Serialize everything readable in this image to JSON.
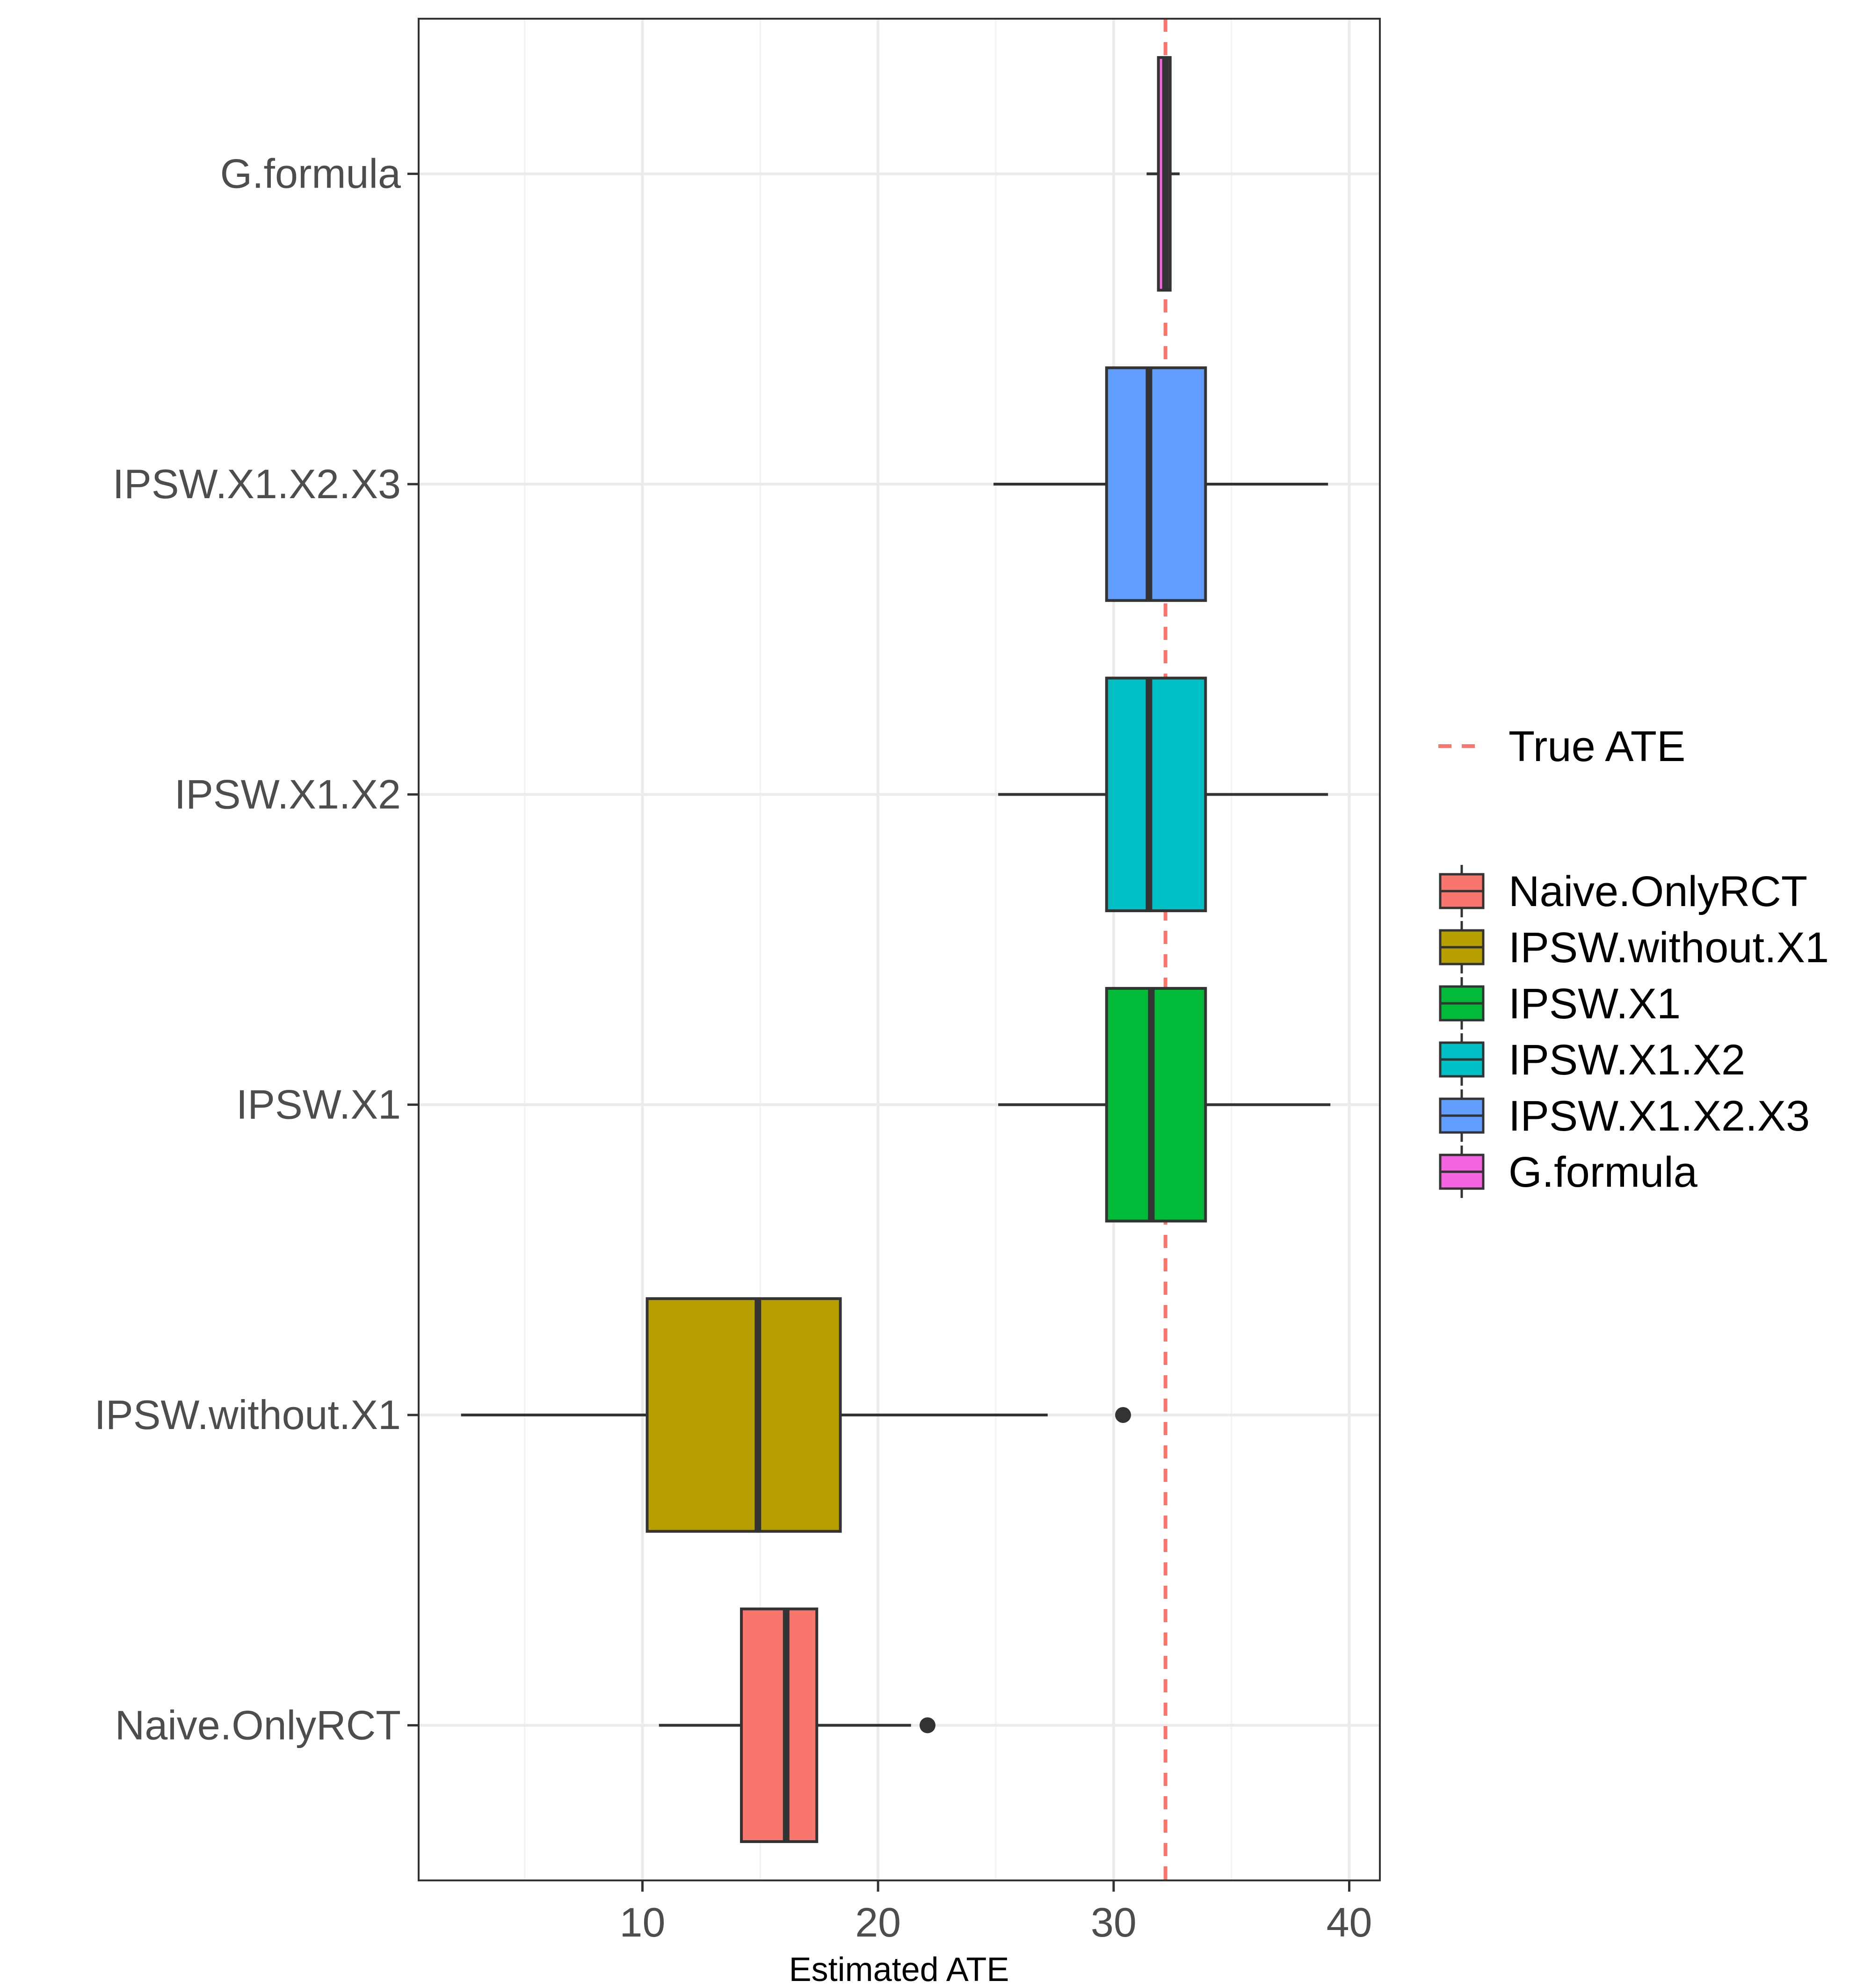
{
  "chart_data": {
    "type": "boxplot",
    "orientation": "horizontal",
    "xlabel": "Estimated ATE",
    "ylabel": "",
    "xlim": [
      0.5,
      41.3
    ],
    "x_ticks": [
      10,
      20,
      30,
      40
    ],
    "grid": true,
    "categories": [
      "Naive.OnlyRCT",
      "IPSW.without.X1",
      "IPSW.X1",
      "IPSW.X1.X2",
      "IPSW.X1.X2.X3",
      "G.formula"
    ],
    "series": [
      {
        "name": "Naive.OnlyRCT",
        "color": "#F8766D",
        "whisker_low": 10.7,
        "q1": 14.2,
        "median": 16.1,
        "q3": 17.4,
        "whisker_high": 21.4,
        "outliers": [
          22.1
        ]
      },
      {
        "name": "IPSW.without.X1",
        "color": "#B79F00",
        "whisker_low": 2.3,
        "q1": 10.2,
        "median": 14.9,
        "q3": 18.4,
        "whisker_high": 27.2,
        "outliers": [
          30.4
        ]
      },
      {
        "name": "IPSW.X1",
        "color": "#00BA38",
        "whisker_low": 25.1,
        "q1": 29.7,
        "median": 31.6,
        "q3": 33.9,
        "whisker_high": 39.2,
        "outliers": []
      },
      {
        "name": "IPSW.X1.X2",
        "color": "#00BFC4",
        "whisker_low": 25.1,
        "q1": 29.7,
        "median": 31.5,
        "q3": 33.9,
        "whisker_high": 39.1,
        "outliers": []
      },
      {
        "name": "IPSW.X1.X2.X3",
        "color": "#619CFF",
        "whisker_low": 24.9,
        "q1": 29.7,
        "median": 31.5,
        "q3": 33.9,
        "whisker_high": 39.1,
        "outliers": []
      },
      {
        "name": "G.formula",
        "color": "#F564E3",
        "whisker_low": 31.4,
        "q1": 31.9,
        "median": 32.2,
        "q3": 32.4,
        "whisker_high": 32.8,
        "outliers": []
      }
    ],
    "reference_line": {
      "name": "True ATE",
      "value": 32.2,
      "color": "#F8766D",
      "style": "dashed"
    },
    "legend": {
      "placement": "right",
      "line_entry": "True ATE",
      "fill_entries": [
        "Naive.OnlyRCT",
        "IPSW.without.X1",
        "IPSW.X1",
        "IPSW.X1.X2",
        "IPSW.X1.X2.X3",
        "G.formula"
      ]
    }
  }
}
